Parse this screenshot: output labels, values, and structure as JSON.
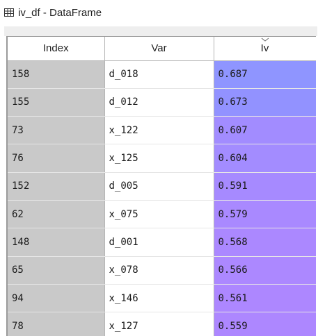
{
  "window": {
    "title": "iv_df - DataFrame",
    "icon": "table-grid-icon"
  },
  "table": {
    "columns": [
      "Index",
      "Var",
      "Iv"
    ],
    "sorted_column": "Iv",
    "sort_direction": "descending",
    "rows": [
      {
        "index": "158",
        "var": "d_018",
        "iv": "0.687",
        "color": "#8f95ff"
      },
      {
        "index": "155",
        "var": "d_012",
        "iv": "0.673",
        "color": "#9292ff"
      },
      {
        "index": "73",
        "var": "x_122",
        "iv": "0.607",
        "color": "#a28cff"
      },
      {
        "index": "76",
        "var": "x_125",
        "iv": "0.604",
        "color": "#a38cff"
      },
      {
        "index": "152",
        "var": "d_005",
        "iv": "0.591",
        "color": "#a68aff"
      },
      {
        "index": "62",
        "var": "x_075",
        "iv": "0.579",
        "color": "#a989ff"
      },
      {
        "index": "148",
        "var": "d_001",
        "iv": "0.568",
        "color": "#ab88ff"
      },
      {
        "index": "65",
        "var": "x_078",
        "iv": "0.566",
        "color": "#ac88ff"
      },
      {
        "index": "94",
        "var": "x_146",
        "iv": "0.561",
        "color": "#ad87ff"
      },
      {
        "index": "78",
        "var": "x_127",
        "iv": "0.559",
        "color": "#ad87ff"
      }
    ]
  }
}
